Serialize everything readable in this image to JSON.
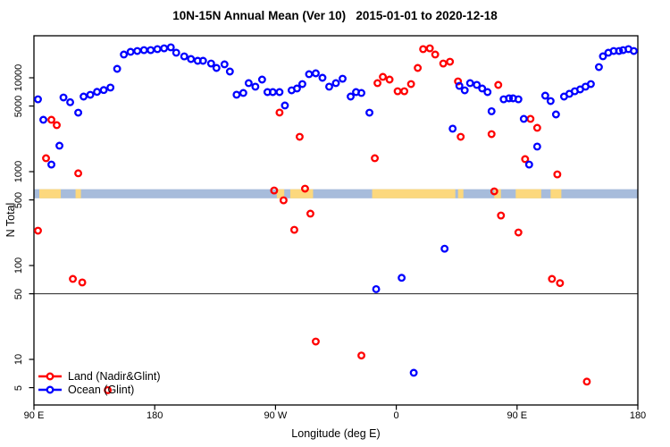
{
  "title": "10N-15N Annual Mean (Ver 10)   2015-01-01 to 2020-12-18",
  "axes": {
    "x_label": "Longitude (deg E)",
    "y_label": "N Total",
    "x_ticks": [
      {
        "lon": 90,
        "label": "90 E"
      },
      {
        "lon": 180,
        "label": "180"
      },
      {
        "lon": 270,
        "label": "90 W"
      },
      {
        "lon": 360,
        "label": "0"
      },
      {
        "lon": 450,
        "label": "90 E"
      },
      {
        "lon": 540,
        "label": "180"
      }
    ],
    "y_ticks": [
      {
        "value": 10000,
        "label": "10000"
      },
      {
        "value": 5000,
        "label": "5000"
      },
      {
        "value": 1000,
        "label": "1000"
      },
      {
        "value": 500,
        "label": "500"
      },
      {
        "value": 100,
        "label": "100"
      },
      {
        "value": 50,
        "label": "50"
      },
      {
        "value": 10,
        "label": "10"
      },
      {
        "value": 5,
        "label": "5"
      }
    ]
  },
  "legend": [
    {
      "label": "Land (Nadir&Glint)",
      "color": "#ff0000"
    },
    {
      "label": "Ocean (Glint)",
      "color": "#0000ff"
    }
  ],
  "colors": {
    "land_series": "#ff0000",
    "ocean_series": "#0000ff",
    "map_ocean": "#a7bcdb",
    "map_land": "#fcd87d",
    "box": "#000000",
    "reference_line": "#3c3c3c"
  },
  "chart_data": {
    "type": "scatter",
    "title": "10N-15N Annual Mean (Ver 10)   2015-01-01 to 2020-12-18",
    "xlabel": "Longitude (deg E)",
    "ylabel": "N Total",
    "x_axis_deg_east_extended": [
      90,
      540
    ],
    "y_scale": "log10",
    "y_axis_range": [
      3.2,
      28000
    ],
    "grid": false,
    "reference_line_value": 50,
    "latitude_band_map": {
      "description": "10N-15N land/ocean strip drawn across plot",
      "value_range": [
        520,
        650
      ],
      "land_segments_deg": [
        [
          94,
          110
        ],
        [
          121,
          125
        ],
        [
          271,
          276.5
        ],
        [
          281,
          298
        ],
        [
          342,
          404
        ],
        [
          406,
          410
        ],
        [
          433,
          438
        ],
        [
          449,
          468
        ],
        [
          475,
          483
        ]
      ]
    },
    "series": [
      {
        "name": "Land (Nadir&Glint)",
        "color": "#ff0000",
        "points": [
          [
            93,
            235
          ],
          [
            99,
            1390
          ],
          [
            103,
            3570
          ],
          [
            107,
            3130
          ],
          [
            119,
            72
          ],
          [
            123,
            960
          ],
          [
            126,
            66
          ],
          [
            145,
            4.7
          ],
          [
            269,
            630
          ],
          [
            273,
            4260
          ],
          [
            276,
            495
          ],
          [
            284,
            240
          ],
          [
            288,
            2350
          ],
          [
            292,
            659
          ],
          [
            296,
            357
          ],
          [
            300,
            15.5
          ],
          [
            334,
            11
          ],
          [
            344,
            1390
          ],
          [
            346,
            8770
          ],
          [
            350,
            10230
          ],
          [
            355,
            9570
          ],
          [
            361,
            7190
          ],
          [
            366,
            7190
          ],
          [
            371,
            8570
          ],
          [
            376,
            12730
          ],
          [
            380,
            20200
          ],
          [
            385,
            20600
          ],
          [
            389,
            17700
          ],
          [
            395,
            14190
          ],
          [
            400,
            14830
          ],
          [
            406,
            9150
          ],
          [
            408,
            2350
          ],
          [
            431,
            2510
          ],
          [
            433,
            617
          ],
          [
            436,
            8390
          ],
          [
            438,
            341
          ],
          [
            451,
            225
          ],
          [
            456,
            1360
          ],
          [
            460,
            3650
          ],
          [
            465,
            2930
          ],
          [
            476,
            72
          ],
          [
            480,
            935
          ],
          [
            482,
            65
          ],
          [
            502,
            5.8
          ]
        ]
      },
      {
        "name": "Ocean (Glint)",
        "color": "#0000ff",
        "points": [
          [
            93,
            5900
          ],
          [
            97,
            3570
          ],
          [
            103,
            1190
          ],
          [
            109,
            1890
          ],
          [
            112,
            6170
          ],
          [
            117,
            5490
          ],
          [
            123,
            4250
          ],
          [
            127,
            6310
          ],
          [
            132,
            6590
          ],
          [
            137,
            7080
          ],
          [
            142,
            7400
          ],
          [
            147,
            7870
          ],
          [
            152,
            12450
          ],
          [
            157,
            17700
          ],
          [
            162,
            18900
          ],
          [
            167,
            19300
          ],
          [
            172,
            19700
          ],
          [
            177,
            19700
          ],
          [
            182,
            20200
          ],
          [
            187,
            20600
          ],
          [
            192,
            21100
          ],
          [
            196,
            18500
          ],
          [
            202,
            16900
          ],
          [
            207,
            15850
          ],
          [
            212,
            15170
          ],
          [
            216,
            15170
          ],
          [
            222,
            14190
          ],
          [
            226,
            12730
          ],
          [
            232,
            13900
          ],
          [
            236,
            11660
          ],
          [
            241,
            6600
          ],
          [
            246,
            6890
          ],
          [
            250,
            8770
          ],
          [
            255,
            8040
          ],
          [
            260,
            9570
          ],
          [
            264,
            7040
          ],
          [
            268,
            7040
          ],
          [
            273,
            7040
          ],
          [
            277,
            5070
          ],
          [
            282,
            7350
          ],
          [
            286,
            7690
          ],
          [
            290,
            8570
          ],
          [
            295,
            10920
          ],
          [
            300,
            11160
          ],
          [
            305,
            10000
          ],
          [
            310,
            8040
          ],
          [
            315,
            8770
          ],
          [
            320,
            9770
          ],
          [
            326,
            6310
          ],
          [
            330,
            7040
          ],
          [
            334,
            6890
          ],
          [
            340,
            4250
          ],
          [
            345,
            56
          ],
          [
            364,
            74
          ],
          [
            373,
            7.2
          ],
          [
            396,
            151
          ],
          [
            402,
            2870
          ],
          [
            407,
            8200
          ],
          [
            411,
            7350
          ],
          [
            415,
            8770
          ],
          [
            420,
            8400
          ],
          [
            424,
            7690
          ],
          [
            428,
            7040
          ],
          [
            431,
            4400
          ],
          [
            440,
            5900
          ],
          [
            444,
            6040
          ],
          [
            447,
            6040
          ],
          [
            451,
            5900
          ],
          [
            455,
            3650
          ],
          [
            459,
            1190
          ],
          [
            465,
            1850
          ],
          [
            471,
            6450
          ],
          [
            475,
            5650
          ],
          [
            479,
            4070
          ],
          [
            485,
            6310
          ],
          [
            489,
            6750
          ],
          [
            493,
            7190
          ],
          [
            497,
            7520
          ],
          [
            501,
            8040
          ],
          [
            505,
            8570
          ],
          [
            511,
            13000
          ],
          [
            514,
            16940
          ],
          [
            518,
            18490
          ],
          [
            522,
            19300
          ],
          [
            526,
            19300
          ],
          [
            529,
            19700
          ],
          [
            533,
            20200
          ],
          [
            537,
            19300
          ]
        ]
      }
    ]
  }
}
